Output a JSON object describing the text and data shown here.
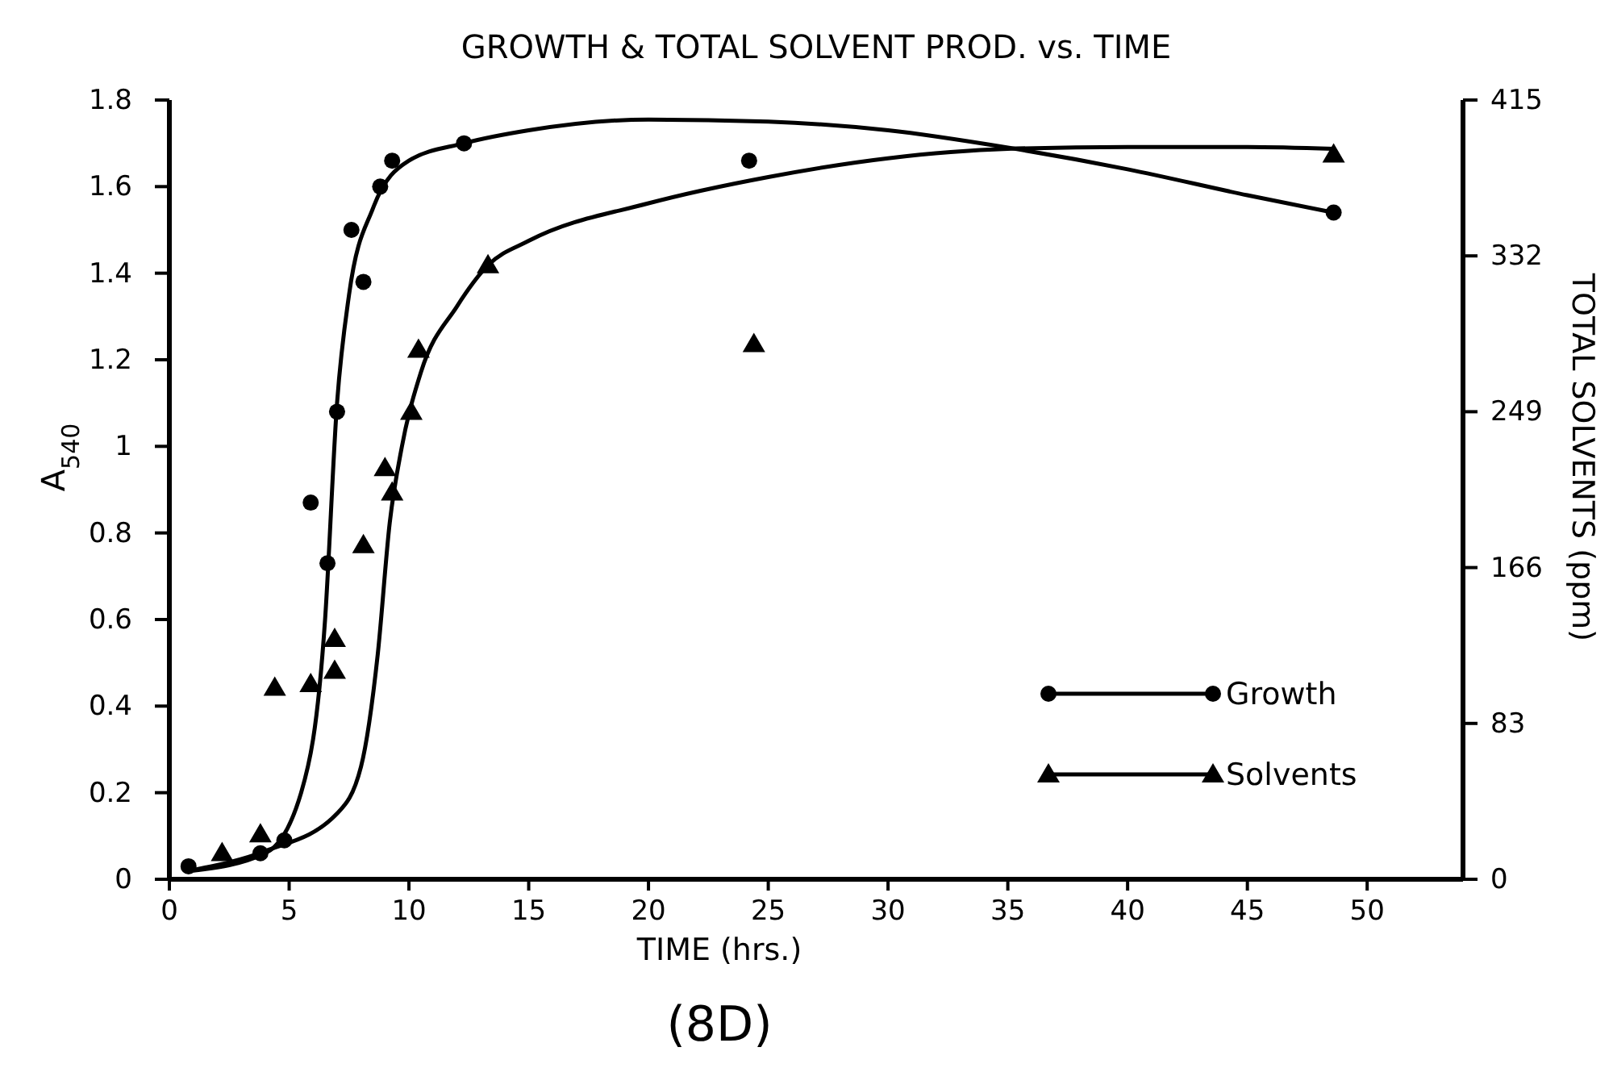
{
  "chart_data": {
    "type": "scatter",
    "title": "GROWTH & TOTAL SOLVENT PROD. vs. TIME",
    "xlabel": "TIME (hrs.)",
    "ylabel": "A$_{540}$",
    "y2label": "TOTAL SOLVENTS (ppm)",
    "annotations": [
      "(8D)"
    ],
    "xlim": [
      0,
      54
    ],
    "xticks": [
      0,
      5,
      10,
      15,
      20,
      25,
      30,
      35,
      40,
      45,
      50
    ],
    "ylim": [
      0,
      1.8
    ],
    "yticks": [
      0,
      0.2,
      0.4,
      0.6,
      0.8,
      1.0,
      1.2,
      1.4,
      1.6,
      1.8
    ],
    "y2lim": [
      0,
      415
    ],
    "y2ticks": [
      0,
      83,
      166,
      249,
      332,
      415
    ],
    "grid": false,
    "legend": "right",
    "series": [
      {
        "name": "Growth",
        "type": "scatter",
        "marker": "circle",
        "color": "#000000",
        "x": [
          0.8,
          3.8,
          4.8,
          5.9,
          6.6,
          7.0,
          7.6,
          8.1,
          8.8,
          9.3,
          12.3,
          24.2,
          48.6
        ],
        "values": [
          0.03,
          0.06,
          0.09,
          0.87,
          0.73,
          1.08,
          1.5,
          1.38,
          1.6,
          1.66,
          1.7,
          1.66,
          1.54
        ]
      },
      {
        "name": "Solvents",
        "type": "scatter",
        "marker": "triangle",
        "axis": "y2",
        "color": "#000000",
        "x": [
          2.2,
          3.8,
          4.4,
          5.9,
          6.9,
          6.9,
          8.1,
          9.0,
          9.3,
          10.1,
          10.4,
          13.3,
          24.4,
          48.6
        ],
        "values": [
          14,
          24,
          102,
          104,
          111,
          128,
          178,
          219,
          206,
          249,
          282,
          327,
          285,
          386
        ]
      },
      {
        "type": "line",
        "marker": "none",
        "line_style": "solid",
        "color": "#000000",
        "x": [
          1,
          4,
          5.5,
          6.5,
          7,
          7.5,
          8.5,
          10,
          12.3,
          15,
          20,
          25,
          30,
          35,
          40,
          45,
          48.6
        ],
        "values": [
          0.02,
          0.06,
          0.2,
          0.6,
          1.1,
          1.35,
          1.55,
          1.66,
          1.7,
          1.73,
          1.755,
          1.75,
          1.73,
          1.69,
          1.64,
          1.58,
          1.54
        ]
      },
      {
        "type": "line",
        "marker": "none",
        "line_style": "solid",
        "axis": "y2",
        "color": "#000000",
        "x": [
          1,
          4,
          7,
          8,
          8.7,
          9.2,
          9.7,
          10.5,
          12,
          13.3,
          15,
          20,
          25,
          30,
          35,
          40,
          45,
          48.6
        ],
        "values": [
          5,
          15,
          35,
          60,
          120,
          190,
          230,
          270,
          305,
          327,
          340,
          360,
          374,
          384,
          389,
          390,
          390,
          389
        ]
      }
    ]
  }
}
